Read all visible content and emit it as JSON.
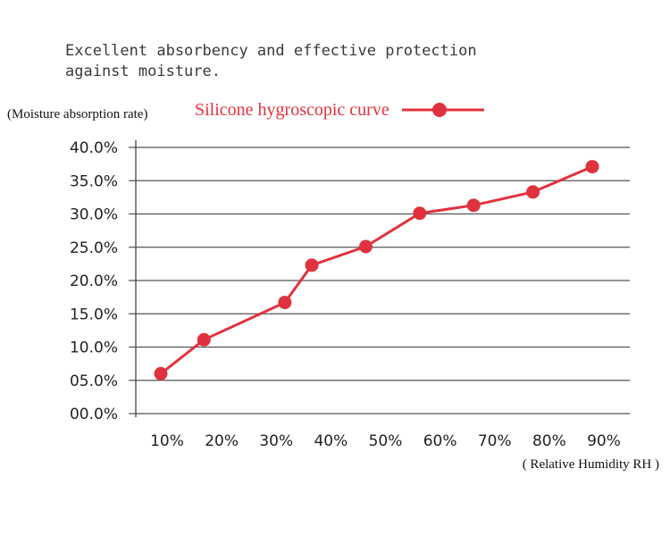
{
  "chart_data": {
    "type": "line",
    "title": "",
    "subtitle": "Excellent absorbency and effective protection against moisture.",
    "xlabel": "( Relative Humidity RH )",
    "ylabel": "(Moisture absorption rate)",
    "x_tick_labels": [
      "10%",
      "20%",
      "30%",
      "40%",
      "50%",
      "60%",
      "70%",
      "80%",
      "90%"
    ],
    "y_tick_labels": [
      "00.0%",
      "05.0%",
      "10.0%",
      "15.0%",
      "20.0%",
      "25.0%",
      "30.0%",
      "35.0%",
      "40.0%"
    ],
    "ylim": [
      0,
      40
    ],
    "xlim": [
      10,
      90
    ],
    "grid": true,
    "legend_position": "top",
    "series": [
      {
        "name": "Silicone hygroscopic curve",
        "color": "#e0323e",
        "marker": "circle",
        "x": [
          10,
          18,
          33,
          38,
          48,
          58,
          68,
          79,
          90
        ],
        "y": [
          6.0,
          11.1,
          16.7,
          22.3,
          25.1,
          30.1,
          31.3,
          33.3,
          37.1
        ]
      }
    ]
  }
}
